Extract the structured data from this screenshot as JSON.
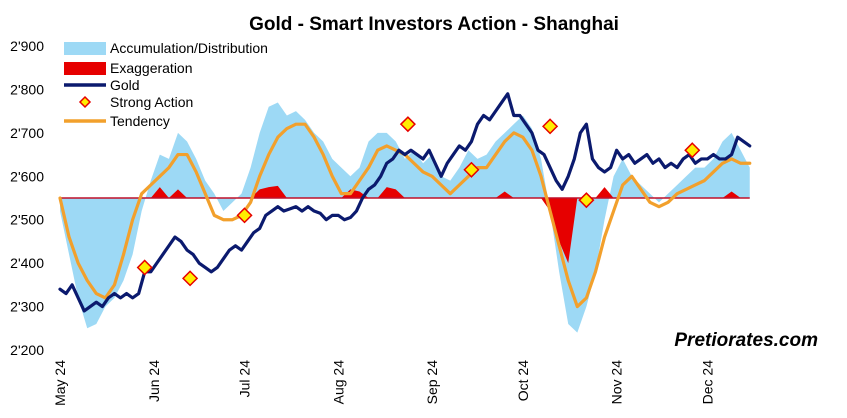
{
  "chart_data": {
    "type": "line",
    "title": "Gold - Smart Investors Action - Shanghai",
    "watermark": "Pretiorates.com",
    "y_ticks": [
      "2'900",
      "2'800",
      "2'700",
      "2'600",
      "2'500",
      "2'400",
      "2'300",
      "2'200"
    ],
    "ylim": [
      2200,
      2900
    ],
    "x_ticks": [
      "May 24",
      "Jun 24",
      "Jul 24",
      "Aug 24",
      "Sep 24",
      "Oct 24",
      "Nov 24",
      "Dec 24"
    ],
    "x_tick_days": [
      0,
      31,
      61,
      92,
      123,
      153,
      184,
      214
    ],
    "xlim": [
      0,
      238
    ],
    "baseline": 2550,
    "grid": false,
    "legend_placement": "top-left",
    "legend": [
      {
        "label": "Accumulation/Distribution",
        "kind": "area",
        "color": "#9dd9f5"
      },
      {
        "label": "Exaggeration",
        "kind": "area",
        "color": "#e60000"
      },
      {
        "label": "Gold",
        "kind": "line",
        "color": "#0b1a6e"
      },
      {
        "label": "Strong Action",
        "kind": "marker",
        "color": "#ffee00",
        "edge": "#e60000"
      },
      {
        "label": "Tendency",
        "kind": "line",
        "color": "#f2a02c"
      }
    ],
    "series": [
      {
        "name": "Gold",
        "x": [
          0,
          2,
          4,
          6,
          8,
          10,
          12,
          14,
          16,
          18,
          20,
          22,
          24,
          26,
          28,
          30,
          32,
          34,
          36,
          38,
          40,
          42,
          44,
          46,
          48,
          50,
          52,
          54,
          56,
          58,
          60,
          62,
          64,
          66,
          68,
          70,
          72,
          74,
          76,
          78,
          80,
          82,
          84,
          86,
          88,
          90,
          92,
          94,
          96,
          98,
          100,
          102,
          104,
          106,
          108,
          110,
          112,
          114,
          116,
          118,
          120,
          122,
          124,
          126,
          128,
          130,
          132,
          134,
          136,
          138,
          140,
          142,
          144,
          146,
          148,
          150,
          152,
          154,
          156,
          158,
          160,
          162,
          164,
          166,
          168,
          170,
          172,
          174,
          176,
          178,
          180,
          182,
          184,
          186,
          188,
          190,
          192,
          194,
          196,
          198,
          200,
          202,
          204,
          206,
          208,
          210,
          212,
          214,
          216,
          218,
          220,
          222,
          224,
          226,
          228
        ],
        "y": [
          2340,
          2330,
          2350,
          2320,
          2290,
          2300,
          2310,
          2300,
          2320,
          2330,
          2320,
          2330,
          2320,
          2330,
          2380,
          2380,
          2400,
          2420,
          2440,
          2460,
          2450,
          2430,
          2420,
          2400,
          2390,
          2380,
          2390,
          2410,
          2430,
          2440,
          2430,
          2450,
          2470,
          2480,
          2510,
          2520,
          2530,
          2520,
          2525,
          2530,
          2520,
          2530,
          2520,
          2515,
          2500,
          2510,
          2510,
          2500,
          2505,
          2520,
          2550,
          2570,
          2580,
          2600,
          2630,
          2640,
          2660,
          2650,
          2660,
          2650,
          2640,
          2660,
          2630,
          2600,
          2630,
          2650,
          2670,
          2660,
          2680,
          2720,
          2740,
          2730,
          2750,
          2770,
          2790,
          2740,
          2740,
          2720,
          2700,
          2660,
          2650,
          2620,
          2590,
          2570,
          2600,
          2640,
          2700,
          2720,
          2640,
          2620,
          2610,
          2620,
          2660,
          2640,
          2650,
          2630,
          2640,
          2650,
          2630,
          2640,
          2620,
          2630,
          2620,
          2640,
          2650,
          2630,
          2640,
          2640,
          2650,
          2640,
          2640,
          2650,
          2690,
          2680,
          2670
        ]
      },
      {
        "name": "Tendency",
        "x": [
          0,
          3,
          6,
          9,
          12,
          15,
          18,
          21,
          24,
          27,
          30,
          33,
          36,
          39,
          42,
          45,
          48,
          51,
          54,
          57,
          60,
          63,
          66,
          69,
          72,
          75,
          78,
          81,
          84,
          87,
          90,
          93,
          96,
          99,
          102,
          105,
          108,
          111,
          114,
          117,
          120,
          123,
          126,
          129,
          132,
          135,
          138,
          141,
          144,
          147,
          150,
          153,
          156,
          159,
          162,
          165,
          168,
          171,
          174,
          177,
          180,
          183,
          186,
          189,
          192,
          195,
          198,
          201,
          204,
          207,
          210,
          213,
          216,
          219,
          222,
          225,
          228
        ],
        "y": [
          2550,
          2460,
          2400,
          2360,
          2330,
          2320,
          2350,
          2420,
          2500,
          2560,
          2580,
          2600,
          2620,
          2650,
          2650,
          2610,
          2560,
          2510,
          2500,
          2500,
          2510,
          2540,
          2600,
          2650,
          2690,
          2710,
          2720,
          2720,
          2690,
          2650,
          2600,
          2560,
          2560,
          2590,
          2620,
          2660,
          2670,
          2660,
          2650,
          2630,
          2610,
          2600,
          2580,
          2560,
          2580,
          2600,
          2620,
          2620,
          2650,
          2680,
          2700,
          2690,
          2660,
          2600,
          2520,
          2440,
          2360,
          2300,
          2320,
          2380,
          2460,
          2520,
          2580,
          2600,
          2570,
          2540,
          2530,
          2540,
          2560,
          2570,
          2580,
          2590,
          2610,
          2630,
          2640,
          2630,
          2630
        ]
      },
      {
        "name": "Accumulation/Distribution",
        "x": [
          0,
          3,
          6,
          9,
          12,
          15,
          18,
          21,
          24,
          27,
          30,
          33,
          36,
          39,
          42,
          45,
          48,
          51,
          54,
          57,
          60,
          63,
          66,
          69,
          72,
          75,
          78,
          81,
          84,
          87,
          90,
          93,
          96,
          99,
          102,
          105,
          108,
          111,
          114,
          117,
          120,
          123,
          126,
          129,
          132,
          135,
          138,
          141,
          144,
          147,
          150,
          153,
          156,
          159,
          162,
          165,
          168,
          171,
          174,
          177,
          180,
          183,
          186,
          189,
          192,
          195,
          198,
          201,
          204,
          207,
          210,
          213,
          216,
          219,
          222,
          225,
          228
        ],
        "y": [
          2520,
          2420,
          2320,
          2250,
          2260,
          2300,
          2320,
          2360,
          2420,
          2520,
          2590,
          2650,
          2640,
          2700,
          2680,
          2640,
          2590,
          2560,
          2520,
          2540,
          2560,
          2620,
          2700,
          2760,
          2770,
          2740,
          2750,
          2730,
          2700,
          2680,
          2640,
          2620,
          2600,
          2620,
          2680,
          2700,
          2700,
          2680,
          2640,
          2660,
          2630,
          2650,
          2600,
          2590,
          2620,
          2660,
          2640,
          2650,
          2680,
          2700,
          2720,
          2740,
          2710,
          2640,
          2520,
          2380,
          2260,
          2240,
          2300,
          2380,
          2500,
          2600,
          2640,
          2600,
          2580,
          2560,
          2540,
          2560,
          2580,
          2600,
          2620,
          2620,
          2640,
          2680,
          2700,
          2660,
          2620
        ]
      },
      {
        "name": "Exaggeration",
        "x": [
          0,
          3,
          6,
          9,
          12,
          15,
          18,
          21,
          24,
          27,
          30,
          33,
          36,
          39,
          42,
          45,
          48,
          51,
          54,
          57,
          60,
          63,
          66,
          69,
          72,
          75,
          78,
          81,
          84,
          87,
          90,
          93,
          96,
          99,
          102,
          105,
          108,
          111,
          114,
          117,
          120,
          123,
          126,
          129,
          132,
          135,
          138,
          141,
          144,
          147,
          150,
          153,
          156,
          159,
          162,
          165,
          168,
          171,
          174,
          177,
          180,
          183,
          186,
          189,
          192,
          195,
          198,
          201,
          204,
          207,
          210,
          213,
          216,
          219,
          222,
          225,
          228
        ],
        "y": [
          2550,
          2550,
          2550,
          2550,
          2550,
          2550,
          2550,
          2550,
          2550,
          2550,
          2550,
          2575,
          2550,
          2570,
          2550,
          2550,
          2550,
          2550,
          2550,
          2550,
          2550,
          2550,
          2570,
          2575,
          2578,
          2550,
          2550,
          2550,
          2550,
          2550,
          2550,
          2550,
          2570,
          2565,
          2550,
          2550,
          2575,
          2570,
          2550,
          2550,
          2550,
          2550,
          2550,
          2550,
          2550,
          2550,
          2550,
          2550,
          2550,
          2565,
          2550,
          2550,
          2550,
          2550,
          2520,
          2450,
          2400,
          2550,
          2550,
          2550,
          2575,
          2550,
          2550,
          2550,
          2550,
          2550,
          2550,
          2550,
          2550,
          2550,
          2550,
          2550,
          2550,
          2550,
          2565,
          2550,
          2550
        ]
      },
      {
        "name": "Strong Action",
        "x": [
          28,
          43,
          61,
          115,
          136,
          162,
          174,
          209
        ],
        "y": [
          2390,
          2365,
          2510,
          2720,
          2615,
          2715,
          2545,
          2660
        ]
      }
    ]
  }
}
